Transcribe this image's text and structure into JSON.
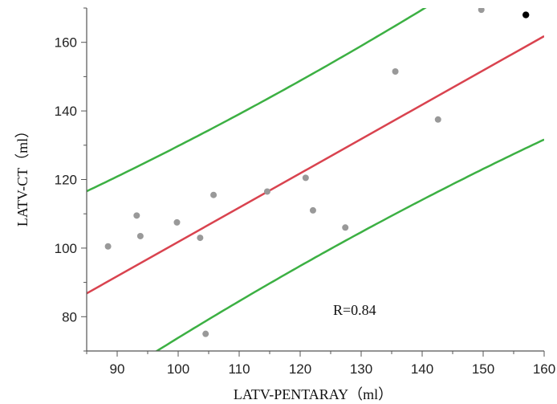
{
  "chart_data": {
    "type": "scatter",
    "xlabel": "LATV-PENTARAY（ml）",
    "ylabel": "LATV-CT（ml）",
    "xlim": [
      85,
      160
    ],
    "ylim": [
      70,
      170
    ],
    "xticks": [
      90,
      100,
      110,
      120,
      130,
      140,
      150,
      160
    ],
    "yticks": [
      80,
      100,
      120,
      140,
      160
    ],
    "grid": false,
    "annotation": "R=0.84",
    "points": [
      {
        "x": 88.5,
        "y": 100.5
      },
      {
        "x": 93.2,
        "y": 109.5
      },
      {
        "x": 93.8,
        "y": 103.5
      },
      {
        "x": 99.8,
        "y": 107.5
      },
      {
        "x": 103.6,
        "y": 103.0
      },
      {
        "x": 104.5,
        "y": 75.0
      },
      {
        "x": 105.8,
        "y": 115.5
      },
      {
        "x": 114.6,
        "y": 116.5
      },
      {
        "x": 120.9,
        "y": 120.5
      },
      {
        "x": 122.1,
        "y": 111.0
      },
      {
        "x": 127.4,
        "y": 106.0
      },
      {
        "x": 135.6,
        "y": 151.5
      },
      {
        "x": 142.6,
        "y": 137.5
      },
      {
        "x": 149.7,
        "y": 169.5
      },
      {
        "x": 157.0,
        "y": 168.0,
        "highlight": true
      }
    ],
    "fit_line": {
      "slope": 1.0,
      "intercept": 1.8
    },
    "prediction_band": {
      "half_width_at_center": 27,
      "center_x": 121.4,
      "growth": 0.0021
    },
    "colors": {
      "point": "#999999",
      "highlight_point": "#000000",
      "fit_line": "#d9434f",
      "band": "#3cb043",
      "axis": "#555555"
    }
  }
}
